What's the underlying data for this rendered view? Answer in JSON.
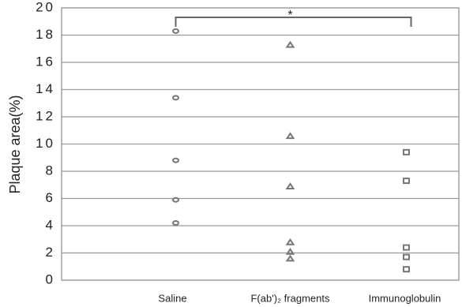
{
  "chart_data": {
    "type": "strip",
    "y_label": "Plaque area(%)",
    "categories": [
      "Saline",
      "F(ab')₂ fragments",
      "Immunoglobulin"
    ],
    "markers": [
      "circle",
      "triangle",
      "square"
    ],
    "color": "#777777",
    "values": [
      [
        18.3,
        13.4,
        8.8,
        5.9,
        4.2
      ],
      [
        17.3,
        10.6,
        6.9,
        2.8,
        2.1,
        1.6
      ],
      [
        9.4,
        7.3,
        2.4,
        1.7,
        0.8
      ]
    ],
    "annotation": "*",
    "ylim": [
      0,
      20
    ],
    "yticks": [
      0,
      2,
      4,
      6,
      8,
      10,
      12,
      14,
      16,
      18,
      20
    ],
    "grid": true
  }
}
